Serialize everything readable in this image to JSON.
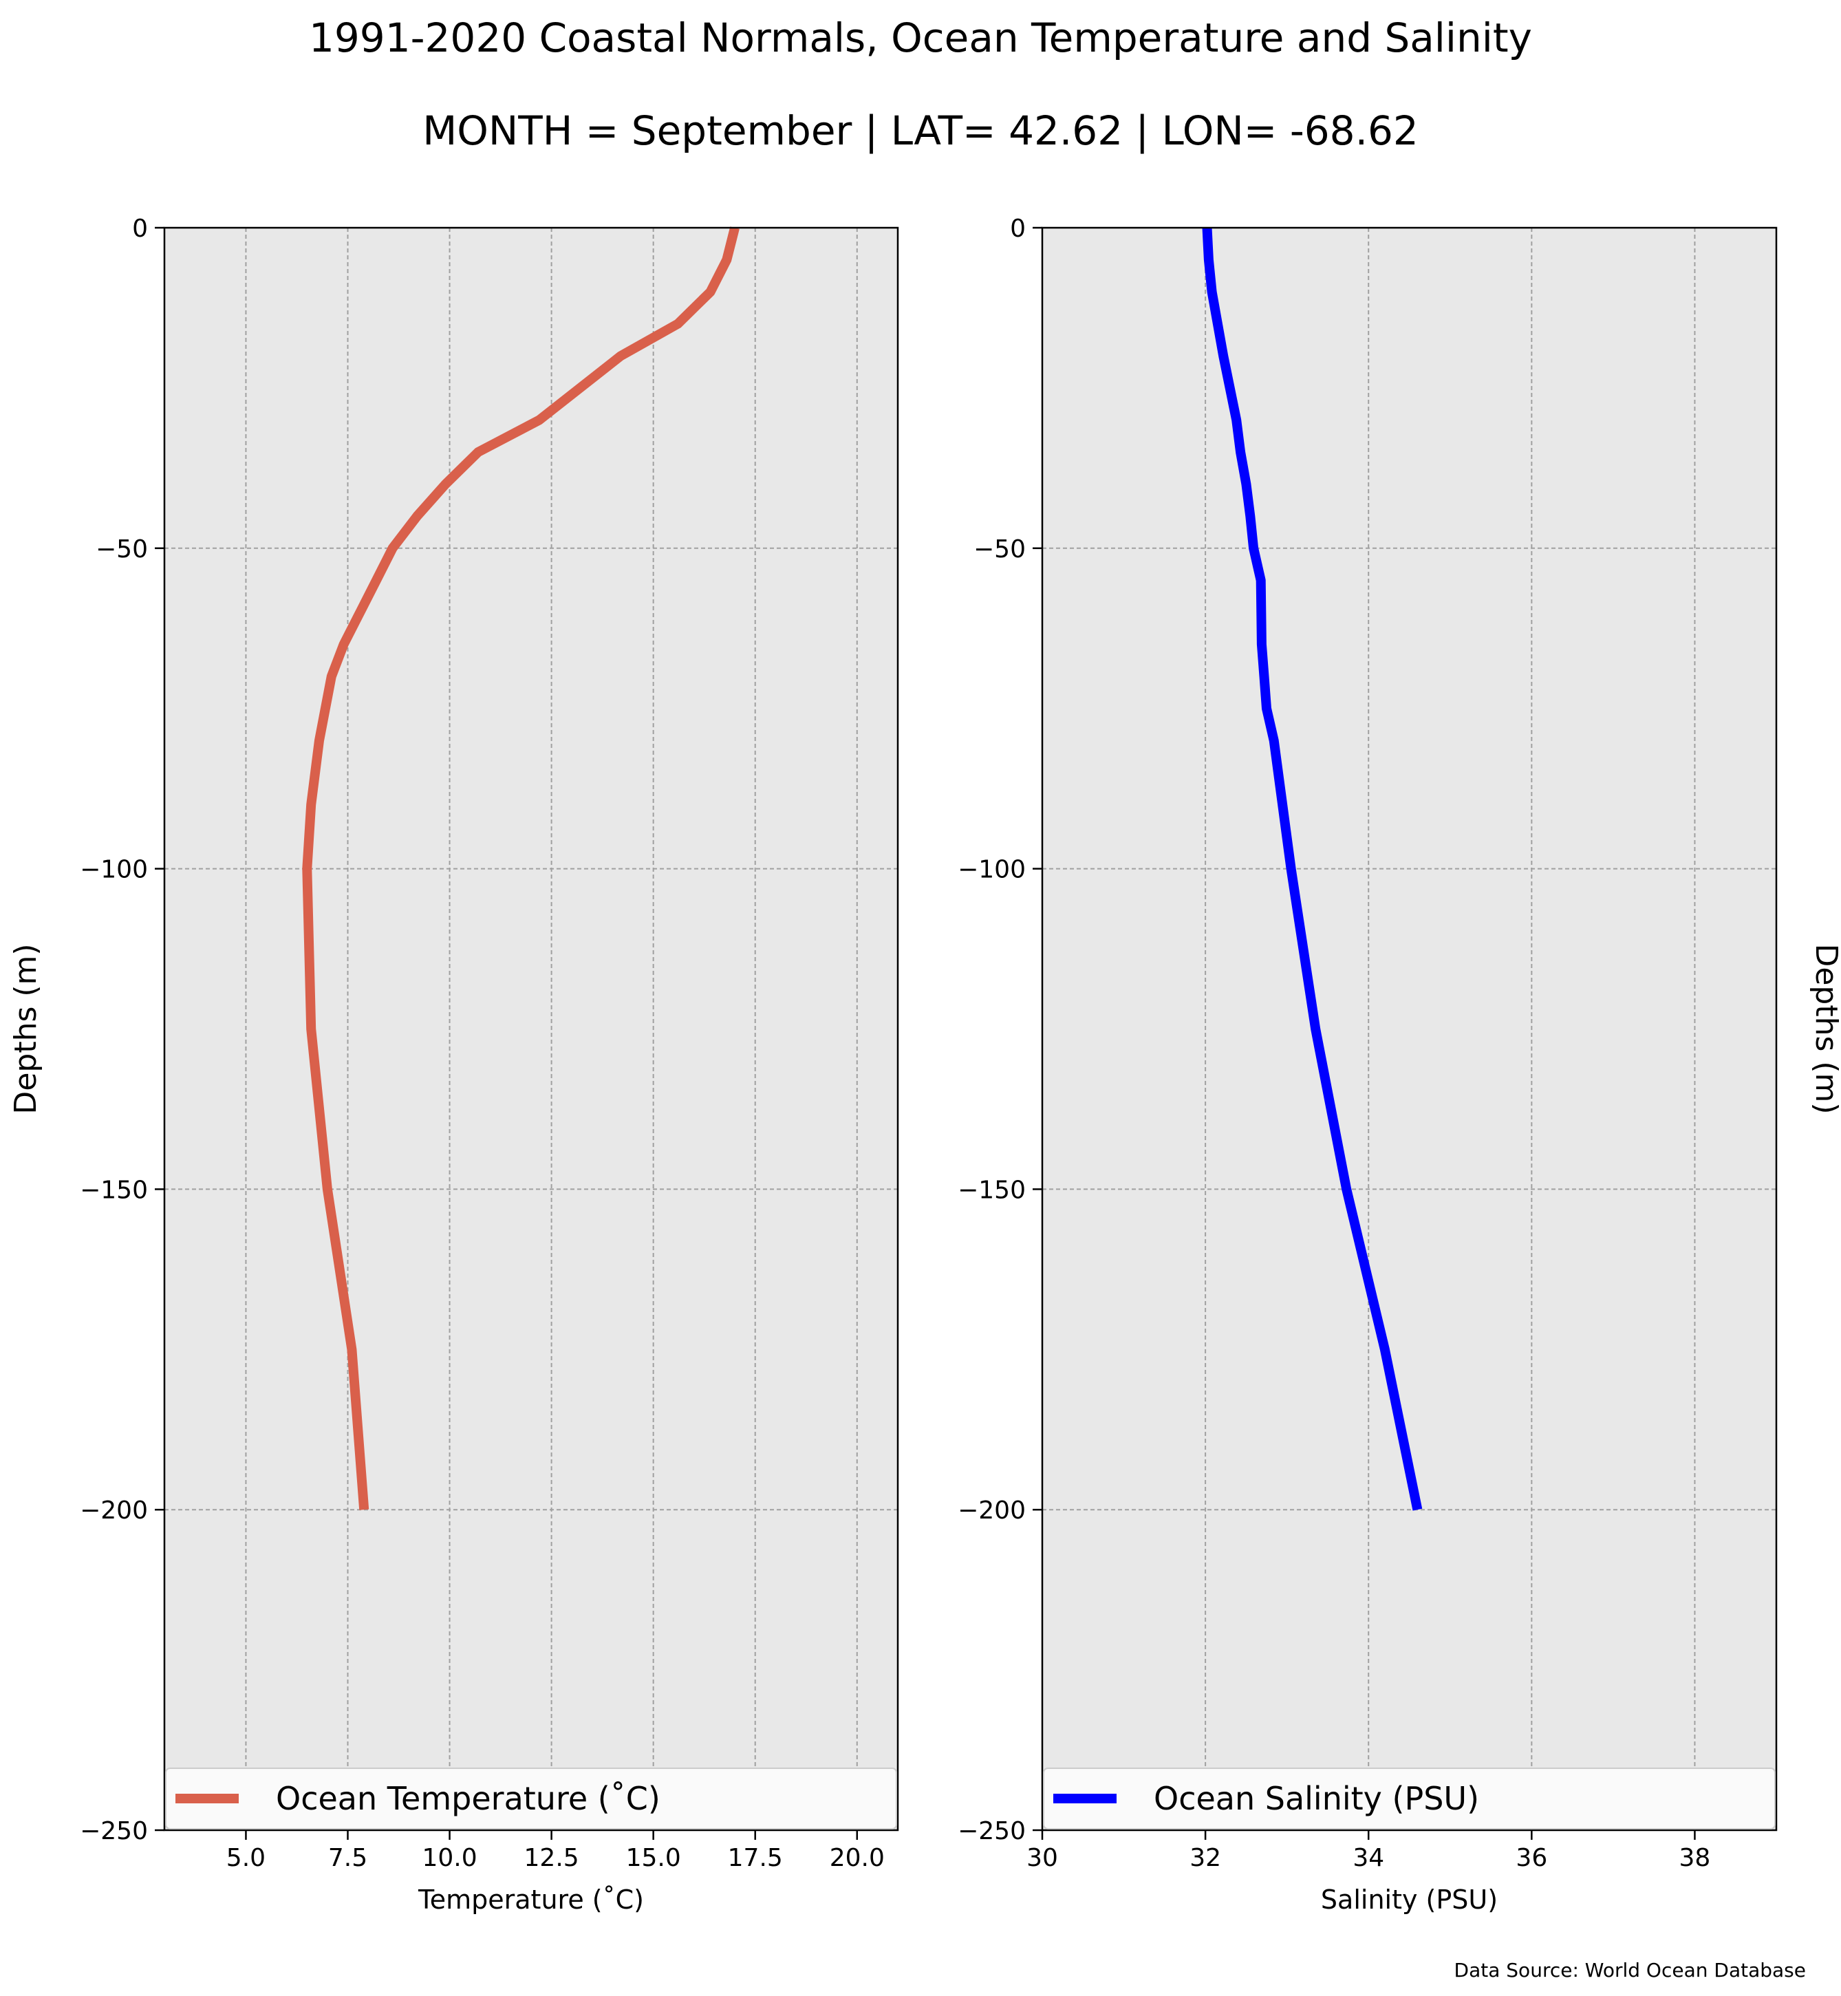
{
  "figure": {
    "title": "1991-2020 Coastal Normals, Ocean Temperature and Salinity",
    "subtitle": "MONTH = September | LAT= 42.62 | LON= -68.62",
    "source_note": "Data Source: World Ocean Database",
    "background_color": "#e8e8e8",
    "grid_color": "#a0a0a0"
  },
  "chart_data": [
    {
      "type": "line",
      "title": "",
      "xlabel": "Temperature ($^\\circ$C)",
      "ylabel": "Depths (m)",
      "xlim": [
        3.0,
        21.0
      ],
      "ylim": [
        -250,
        0
      ],
      "xticks": [
        5.0,
        7.5,
        10.0,
        12.5,
        15.0,
        17.5,
        20.0
      ],
      "xtick_labels": [
        "5.0",
        "7.5",
        "10.0",
        "12.5",
        "15.0",
        "17.5",
        "20.0"
      ],
      "yticks": [
        0,
        -50,
        -100,
        -150,
        -200,
        -250
      ],
      "ytick_labels": [
        "0",
        "−50",
        "−100",
        "−150",
        "−200",
        "−250"
      ],
      "grid": true,
      "legend_position": "bottom",
      "series": [
        {
          "name": "Ocean Temperature ($^\\circ$C)",
          "color": "#d9604b",
          "x": [
            17.0,
            16.8,
            16.4,
            15.6,
            14.2,
            12.2,
            10.7,
            9.9,
            9.2,
            8.6,
            8.2,
            7.8,
            7.4,
            7.1,
            6.8,
            6.6,
            6.5,
            6.6,
            7.0,
            7.6,
            7.9
          ],
          "y": [
            0,
            -5,
            -10,
            -15,
            -20,
            -30,
            -35,
            -40,
            -45,
            -50,
            -55,
            -60,
            -65,
            -70,
            -80,
            -90,
            -100,
            -125,
            -150,
            -175,
            -200
          ]
        }
      ]
    },
    {
      "type": "line",
      "title": "",
      "xlabel": "Salinity (PSU)",
      "ylabel": "Depths (m)",
      "xlim": [
        30,
        39
      ],
      "ylim": [
        -250,
        0
      ],
      "xticks": [
        30,
        32,
        34,
        36,
        38
      ],
      "xtick_labels": [
        "30",
        "32",
        "34",
        "36",
        "38"
      ],
      "yticks": [
        0,
        -50,
        -100,
        -150,
        -200,
        -250
      ],
      "ytick_labels": [
        "0",
        "−50",
        "−100",
        "−150",
        "−200",
        "−250"
      ],
      "grid": true,
      "legend_position": "bottom",
      "series": [
        {
          "name": "Ocean Salinity (PSU)",
          "color": "#0000ff",
          "x": [
            32.02,
            32.04,
            32.08,
            32.15,
            32.22,
            32.3,
            32.38,
            32.43,
            32.5,
            32.55,
            32.59,
            32.68,
            32.69,
            32.72,
            32.75,
            32.84,
            33.05,
            33.35,
            33.73,
            34.2,
            34.6
          ],
          "y": [
            0,
            -5,
            -10,
            -15,
            -20,
            -25,
            -30,
            -35,
            -40,
            -45,
            -50,
            -55,
            -65,
            -70,
            -75,
            -80,
            -100,
            -125,
            -150,
            -175,
            -200
          ]
        }
      ]
    }
  ]
}
